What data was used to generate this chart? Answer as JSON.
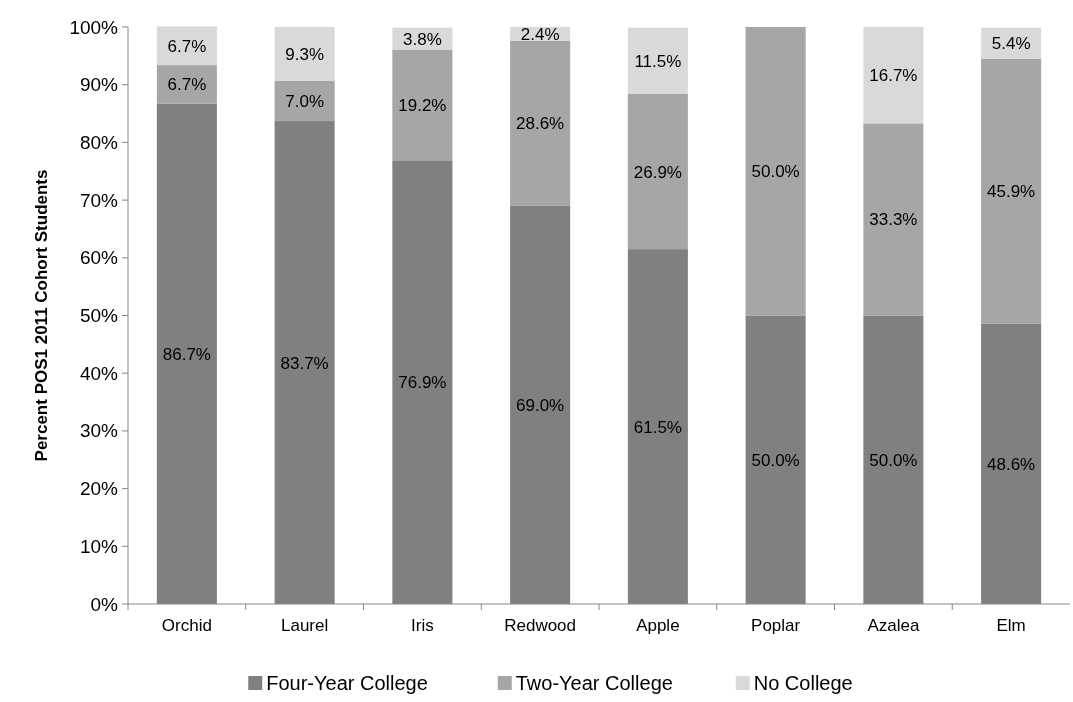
{
  "chart_data": {
    "type": "bar",
    "stacked": true,
    "ylabel": "Percent POS1 2011 Cohort Students",
    "categories": [
      "Orchid",
      "Laurel",
      "Iris",
      "Redwood",
      "Apple",
      "Poplar",
      "Azalea",
      "Elm"
    ],
    "series": [
      {
        "name": "Four-Year College",
        "color": "#808080",
        "values": [
          86.7,
          83.7,
          76.9,
          69.0,
          61.5,
          50.0,
          50.0,
          48.6
        ],
        "value_labels": [
          "86.7%",
          "83.7%",
          "76.9%",
          "69.0%",
          "61.5%",
          "50.0%",
          "50.0%",
          "48.6%"
        ]
      },
      {
        "name": "Two-Year College",
        "color": "#a6a6a6",
        "values": [
          6.7,
          7.0,
          19.2,
          28.6,
          26.9,
          50.0,
          33.3,
          45.9
        ],
        "value_labels": [
          "6.7%",
          "7.0%",
          "19.2%",
          "28.6%",
          "26.9%",
          "50.0%",
          "33.3%",
          "45.9%"
        ]
      },
      {
        "name": "No College",
        "color": "#d9d9d9",
        "values": [
          6.7,
          9.3,
          3.8,
          2.4,
          11.5,
          null,
          16.7,
          5.4
        ],
        "value_labels": [
          "6.7%",
          "9.3%",
          "3.8%",
          "2.4%",
          "11.5%",
          null,
          "16.7%",
          "5.4%"
        ]
      }
    ],
    "ylim": [
      0,
      100
    ],
    "yticks": [
      {
        "value": 0,
        "label": "0%"
      },
      {
        "value": 10,
        "label": "10%"
      },
      {
        "value": 20,
        "label": "20%"
      },
      {
        "value": 30,
        "label": "30%"
      },
      {
        "value": 40,
        "label": "40%"
      },
      {
        "value": 50,
        "label": "50%"
      },
      {
        "value": 60,
        "label": "60%"
      },
      {
        "value": 70,
        "label": "70%"
      },
      {
        "value": 80,
        "label": "80%"
      },
      {
        "value": 90,
        "label": "90%"
      },
      {
        "value": 100,
        "label": "100%"
      }
    ],
    "grid": false,
    "legend": "bottom"
  }
}
